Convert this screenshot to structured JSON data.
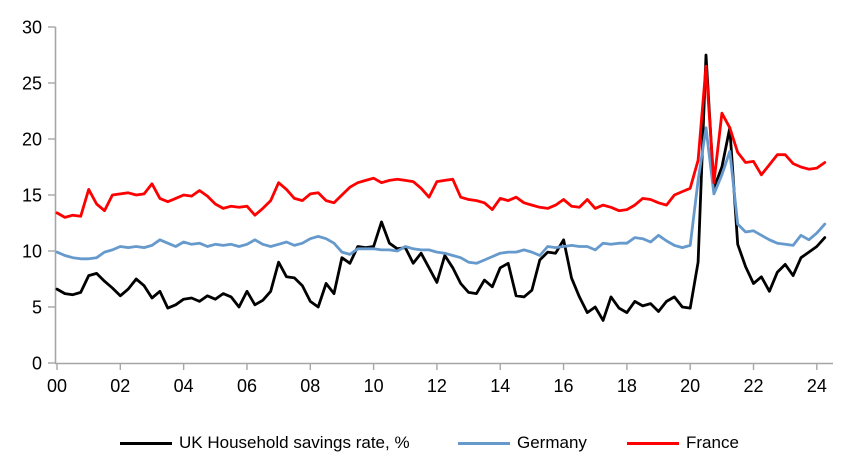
{
  "chart_data": {
    "type": "line",
    "title": "",
    "x_unit": "quarterly",
    "x_start_year": 2000,
    "x_end": "2024Q2",
    "x_tick_labels": [
      "00",
      "02",
      "04",
      "06",
      "08",
      "10",
      "12",
      "14",
      "16",
      "18",
      "20",
      "22",
      "24"
    ],
    "y_ticks": [
      0,
      5,
      10,
      15,
      20,
      25,
      30
    ],
    "ylim": [
      0,
      30
    ],
    "grid": false,
    "legend_position": "bottom",
    "axis_color": "#A6A6A6",
    "series": [
      {
        "name": "UK Household savings rate, %",
        "color": "#000000",
        "values": [
          6.6,
          6.2,
          6.1,
          6.3,
          7.8,
          8.0,
          7.3,
          6.7,
          6.0,
          6.6,
          7.5,
          6.9,
          5.8,
          6.4,
          4.9,
          5.2,
          5.7,
          5.8,
          5.5,
          6.0,
          5.7,
          6.2,
          5.9,
          5.0,
          6.4,
          5.2,
          5.6,
          6.4,
          9.0,
          7.7,
          7.6,
          6.9,
          5.5,
          5.0,
          7.1,
          6.2,
          9.4,
          8.9,
          10.4,
          10.3,
          10.4,
          12.6,
          10.7,
          10.2,
          10.3,
          8.9,
          9.8,
          8.5,
          7.2,
          9.6,
          8.5,
          7.1,
          6.3,
          6.2,
          7.4,
          6.8,
          8.5,
          8.9,
          6.0,
          5.9,
          6.5,
          9.2,
          9.9,
          9.8,
          11.0,
          7.6,
          5.9,
          4.5,
          5.0,
          3.8,
          5.9,
          4.9,
          4.5,
          5.5,
          5.1,
          5.3,
          4.6,
          5.5,
          5.9,
          5.0,
          4.9,
          9.0,
          27.5,
          15.6,
          17.5,
          21.0,
          10.6,
          8.6,
          7.1,
          7.7,
          6.4,
          8.1,
          8.8,
          7.8,
          9.4,
          9.9,
          10.4,
          11.2
        ]
      },
      {
        "name": "Germany",
        "color": "#6699CC",
        "values": [
          9.9,
          9.6,
          9.4,
          9.3,
          9.3,
          9.4,
          9.9,
          10.1,
          10.4,
          10.3,
          10.4,
          10.3,
          10.5,
          11.0,
          10.7,
          10.4,
          10.8,
          10.6,
          10.7,
          10.4,
          10.6,
          10.5,
          10.6,
          10.4,
          10.6,
          11.0,
          10.6,
          10.4,
          10.6,
          10.8,
          10.5,
          10.7,
          11.1,
          11.3,
          11.1,
          10.7,
          9.9,
          9.7,
          10.2,
          10.2,
          10.2,
          10.1,
          10.1,
          10.0,
          10.4,
          10.2,
          10.1,
          10.1,
          9.9,
          9.8,
          9.6,
          9.4,
          9.0,
          8.9,
          9.2,
          9.5,
          9.8,
          9.9,
          9.9,
          10.1,
          9.9,
          9.6,
          10.4,
          10.3,
          10.4,
          10.5,
          10.4,
          10.4,
          10.1,
          10.7,
          10.6,
          10.7,
          10.7,
          11.2,
          11.1,
          10.8,
          11.4,
          10.9,
          10.5,
          10.3,
          10.5,
          16.3,
          21.0,
          15.1,
          16.8,
          18.9,
          12.4,
          11.7,
          11.8,
          11.4,
          11.0,
          10.7,
          10.6,
          10.5,
          11.4,
          11.0,
          11.6,
          12.4
        ]
      },
      {
        "name": "France",
        "color": "#FF0000",
        "values": [
          13.4,
          13.0,
          13.2,
          13.1,
          15.5,
          14.2,
          13.6,
          15.0,
          15.1,
          15.2,
          15.0,
          15.1,
          16.0,
          14.7,
          14.4,
          14.7,
          15.0,
          14.9,
          15.4,
          14.9,
          14.2,
          13.8,
          14.0,
          13.9,
          14.0,
          13.2,
          13.8,
          14.5,
          16.1,
          15.5,
          14.7,
          14.5,
          15.1,
          15.2,
          14.5,
          14.3,
          15.0,
          15.7,
          16.1,
          16.3,
          16.5,
          16.1,
          16.3,
          16.4,
          16.3,
          16.2,
          15.6,
          14.8,
          16.2,
          16.3,
          16.4,
          14.8,
          14.6,
          14.5,
          14.3,
          13.7,
          14.7,
          14.5,
          14.8,
          14.3,
          14.1,
          13.9,
          13.8,
          14.1,
          14.6,
          14.0,
          13.9,
          14.6,
          13.8,
          14.1,
          13.9,
          13.6,
          13.7,
          14.1,
          14.7,
          14.6,
          14.3,
          14.1,
          15.0,
          15.3,
          15.6,
          18.1,
          26.5,
          16.1,
          22.3,
          21.0,
          18.8,
          17.9,
          18.0,
          16.8,
          17.7,
          18.6,
          18.6,
          17.8,
          17.5,
          17.3,
          17.4,
          17.9
        ]
      }
    ]
  }
}
